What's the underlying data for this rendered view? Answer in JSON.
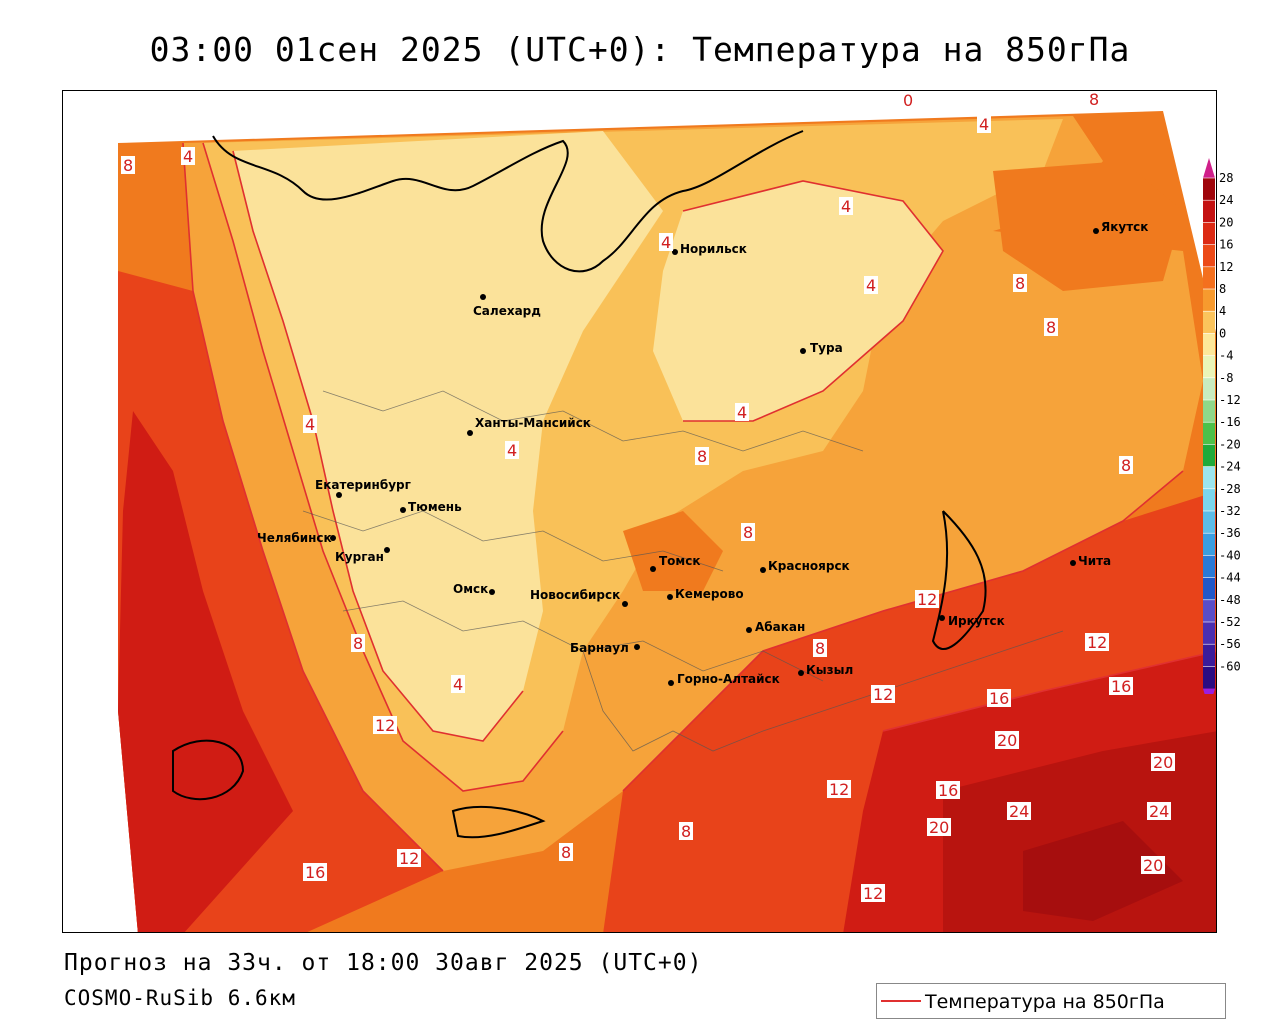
{
  "title": "03:00 01сен 2025 (UTC+0): Температура на 850гПа",
  "footer": {
    "forecast": "Прогноз на 33ч. от 18:00 30авг 2025 (UTC+0)",
    "model": "COSMO-RuSib 6.6км",
    "legend_label": "Температура на 850гПа"
  },
  "colors": {
    "isoline": "#e03030",
    "band_0_4": "#fbe29a",
    "band_4_8": "#f9c158",
    "band_8_12": "#f6a33a",
    "band_12_16": "#f07a1e",
    "band_16_20": "#e8431a",
    "band_20_24": "#d01c14",
    "band_24_28": "#a60e0e"
  },
  "cities": [
    {
      "name": "Норильск"
    },
    {
      "name": "Якутск"
    },
    {
      "name": "Салехард"
    },
    {
      "name": "Тура"
    },
    {
      "name": "Ханты-Мансийск"
    },
    {
      "name": "Екатеринбург"
    },
    {
      "name": "Тюмень"
    },
    {
      "name": "Челябинск"
    },
    {
      "name": "Курган"
    },
    {
      "name": "Томск"
    },
    {
      "name": "Красноярск"
    },
    {
      "name": "Омск"
    },
    {
      "name": "Новосибирск"
    },
    {
      "name": "Кемерово"
    },
    {
      "name": "Абакан"
    },
    {
      "name": "Барнаул"
    },
    {
      "name": "Иркутск"
    },
    {
      "name": "Чита"
    },
    {
      "name": "Кызыл"
    },
    {
      "name": "Горно-Алтайск"
    }
  ],
  "isolines": [
    "0",
    "4",
    "8",
    "12",
    "16",
    "20",
    "24"
  ],
  "colorbar": {
    "ticks": [
      "28",
      "24",
      "20",
      "16",
      "12",
      "8",
      "4",
      "0",
      "-4",
      "-8",
      "-12",
      "-16",
      "-20",
      "-24",
      "-28",
      "-32",
      "-36",
      "-40",
      "-44",
      "-48",
      "-52",
      "-56",
      "-60"
    ],
    "colors": [
      "#a0060c",
      "#c41212",
      "#dc2a14",
      "#ec4a18",
      "#f4701e",
      "#f79a2e",
      "#fbc45c",
      "#fde89a",
      "#eaf5b8",
      "#c8ecc0",
      "#8ed88a",
      "#4cc14a",
      "#1faa3a",
      "#9ce6ee",
      "#7ad6ec",
      "#5cbde8",
      "#3a9ee0",
      "#2a7ad6",
      "#2058c8",
      "#5a4ec8",
      "#4a2fb0",
      "#3a1c9a",
      "#2a0c82"
    ],
    "top_arrow": "#d0208a",
    "bottom_arrow": "#9a1ee0"
  }
}
